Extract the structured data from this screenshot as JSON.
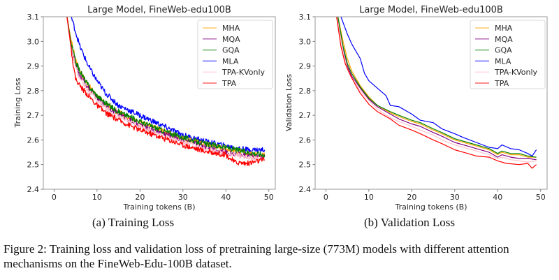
{
  "figure": {
    "caption": "Figure 2: Training loss and validation loss of pretraining large-size (773M) models with different attention mechanisms on the FineWeb-Edu-100B dataset.",
    "subcaptions": [
      "(a) Training Loss",
      "(b) Validation Loss"
    ]
  },
  "chart_data": [
    {
      "type": "line",
      "title": "Large Model, FineWeb-edu100B",
      "xlabel": "Training tokens (B)",
      "ylabel": "Training Loss",
      "xlim": [
        -2.5,
        51.5
      ],
      "ylim": [
        2.4,
        3.1
      ],
      "xticks": [
        0,
        10,
        20,
        30,
        40,
        50
      ],
      "yticks": [
        2.4,
        2.5,
        2.6,
        2.7,
        2.8,
        2.9,
        3.0,
        3.1
      ],
      "ytick_labels": [
        "2.4",
        "2.5",
        "2.6",
        "2.7",
        "2.8",
        "2.9",
        "3.0",
        "3.1"
      ],
      "grid": false,
      "legend_position": "top-right",
      "noisy": true,
      "series": [
        {
          "name": "MHA",
          "color": "#ffa500",
          "x": [
            3,
            4,
            5,
            6,
            8,
            10,
            12,
            15,
            20,
            25,
            30,
            35,
            40,
            45,
            49
          ],
          "y": [
            3.1,
            3.0,
            2.93,
            2.88,
            2.82,
            2.78,
            2.745,
            2.71,
            2.67,
            2.64,
            2.605,
            2.585,
            2.565,
            2.545,
            2.54
          ]
        },
        {
          "name": "MQA",
          "color": "#800080",
          "x": [
            3,
            4,
            5,
            6,
            8,
            10,
            12,
            15,
            20,
            25,
            30,
            35,
            40,
            45,
            49
          ],
          "y": [
            3.1,
            2.98,
            2.9,
            2.86,
            2.81,
            2.77,
            2.74,
            2.705,
            2.66,
            2.63,
            2.6,
            2.575,
            2.55,
            2.535,
            2.53
          ]
        },
        {
          "name": "GQA",
          "color": "#008000",
          "x": [
            3,
            4,
            5,
            6,
            8,
            10,
            12,
            15,
            20,
            25,
            30,
            35,
            40,
            45,
            49
          ],
          "y": [
            3.1,
            2.99,
            2.92,
            2.88,
            2.82,
            2.78,
            2.75,
            2.715,
            2.675,
            2.64,
            2.61,
            2.585,
            2.57,
            2.55,
            2.54
          ]
        },
        {
          "name": "MLA",
          "color": "#0000ff",
          "x": [
            4,
            5,
            6,
            8,
            10,
            12,
            15,
            20,
            25,
            30,
            35,
            40,
            45,
            49
          ],
          "y": [
            3.1,
            3.04,
            2.98,
            2.9,
            2.84,
            2.79,
            2.74,
            2.7,
            2.66,
            2.62,
            2.595,
            2.575,
            2.56,
            2.56
          ]
        },
        {
          "name": "TPA-KVonly",
          "color": "#ffc0cb",
          "x": [
            3,
            4,
            5,
            6,
            8,
            10,
            12,
            15,
            20,
            25,
            30,
            35,
            40,
            45,
            49
          ],
          "y": [
            3.1,
            2.97,
            2.9,
            2.85,
            2.8,
            2.76,
            2.73,
            2.695,
            2.655,
            2.62,
            2.59,
            2.565,
            2.545,
            2.53,
            2.525
          ]
        },
        {
          "name": "TPA",
          "color": "#ff0000",
          "x": [
            3,
            4,
            4.5,
            5,
            6,
            8,
            10,
            12,
            15,
            20,
            25,
            30,
            35,
            40,
            42,
            45,
            49
          ],
          "y": [
            3.1,
            2.97,
            2.9,
            2.85,
            2.82,
            2.78,
            2.74,
            2.71,
            2.68,
            2.64,
            2.61,
            2.58,
            2.555,
            2.54,
            2.51,
            2.505,
            2.52
          ]
        }
      ]
    },
    {
      "type": "line",
      "title": "Large Model, FineWeb-edu100B",
      "xlabel": "Training tokens (B)",
      "ylabel": "Validation Loss",
      "xlim": [
        -2.5,
        51.5
      ],
      "ylim": [
        2.4,
        3.1
      ],
      "xticks": [
        0,
        10,
        20,
        30,
        40,
        50
      ],
      "yticks": [
        2.4,
        2.5,
        2.6,
        2.7,
        2.8,
        2.9,
        3.0,
        3.1
      ],
      "ytick_labels": [
        "2.4",
        "2.5",
        "2.6",
        "2.7",
        "2.8",
        "2.9",
        "3.0",
        "3.1"
      ],
      "grid": false,
      "legend_position": "top-right",
      "noisy": false,
      "series": [
        {
          "name": "MHA",
          "color": "#ffa500",
          "x": [
            2.8,
            4,
            5,
            6,
            8,
            10,
            12,
            15,
            17,
            20,
            22,
            25,
            27,
            30,
            33,
            35,
            38,
            40,
            41,
            43,
            45,
            47,
            49
          ],
          "y": [
            3.1,
            3.0,
            2.93,
            2.88,
            2.82,
            2.775,
            2.74,
            2.71,
            2.695,
            2.675,
            2.665,
            2.64,
            2.625,
            2.6,
            2.585,
            2.575,
            2.56,
            2.54,
            2.55,
            2.54,
            2.54,
            2.53,
            2.53
          ]
        },
        {
          "name": "MQA",
          "color": "#800080",
          "x": [
            2.7,
            4,
            5,
            6,
            8,
            10,
            12,
            15,
            17,
            20,
            22,
            25,
            27,
            30,
            33,
            35,
            38,
            40,
            41,
            43,
            45,
            47,
            49
          ],
          "y": [
            3.1,
            2.97,
            2.9,
            2.86,
            2.81,
            2.765,
            2.735,
            2.705,
            2.685,
            2.665,
            2.655,
            2.63,
            2.615,
            2.59,
            2.575,
            2.565,
            2.55,
            2.53,
            2.54,
            2.53,
            2.525,
            2.525,
            2.52
          ]
        },
        {
          "name": "GQA",
          "color": "#008000",
          "x": [
            2.8,
            4,
            5,
            6,
            8,
            10,
            12,
            15,
            17,
            20,
            22,
            25,
            27,
            30,
            33,
            35,
            38,
            40,
            41,
            43,
            45,
            47,
            49
          ],
          "y": [
            3.1,
            2.98,
            2.91,
            2.87,
            2.815,
            2.77,
            2.74,
            2.715,
            2.7,
            2.68,
            2.67,
            2.645,
            2.63,
            2.605,
            2.59,
            2.58,
            2.565,
            2.545,
            2.555,
            2.545,
            2.545,
            2.535,
            2.53
          ]
        },
        {
          "name": "MLA",
          "color": "#0000ff",
          "x": [
            3.5,
            5,
            6,
            7,
            8,
            9,
            10,
            12,
            14,
            15,
            17,
            20,
            22,
            25,
            27,
            30,
            32,
            35,
            38,
            40,
            41,
            43,
            45,
            47,
            48,
            49
          ],
          "y": [
            3.1,
            3.03,
            2.99,
            2.96,
            2.93,
            2.87,
            2.84,
            2.81,
            2.78,
            2.74,
            2.735,
            2.705,
            2.68,
            2.67,
            2.645,
            2.625,
            2.61,
            2.59,
            2.57,
            2.565,
            2.58,
            2.565,
            2.56,
            2.545,
            2.535,
            2.56
          ]
        },
        {
          "name": "TPA-KVonly",
          "color": "#ffc0cb",
          "x": [
            2.6,
            4,
            5,
            6,
            8,
            10,
            12,
            15,
            17,
            20,
            22,
            25,
            27,
            30,
            33,
            35,
            38,
            40,
            41,
            43,
            45,
            47,
            49
          ],
          "y": [
            3.1,
            2.96,
            2.89,
            2.85,
            2.8,
            2.76,
            2.725,
            2.69,
            2.675,
            2.655,
            2.64,
            2.62,
            2.6,
            2.58,
            2.565,
            2.555,
            2.54,
            2.525,
            2.53,
            2.52,
            2.515,
            2.51,
            2.515
          ]
        },
        {
          "name": "TPA",
          "color": "#ff0000",
          "x": [
            2.5,
            3.5,
            4.5,
            5.5,
            7,
            8,
            10,
            12,
            15,
            17,
            20,
            22,
            25,
            27,
            30,
            33,
            35,
            38,
            40,
            42,
            45,
            47,
            48,
            49
          ],
          "y": [
            3.1,
            2.98,
            2.91,
            2.87,
            2.82,
            2.79,
            2.745,
            2.715,
            2.685,
            2.66,
            2.64,
            2.625,
            2.6,
            2.585,
            2.56,
            2.545,
            2.535,
            2.53,
            2.515,
            2.505,
            2.5,
            2.505,
            2.485,
            2.5
          ]
        }
      ]
    }
  ]
}
